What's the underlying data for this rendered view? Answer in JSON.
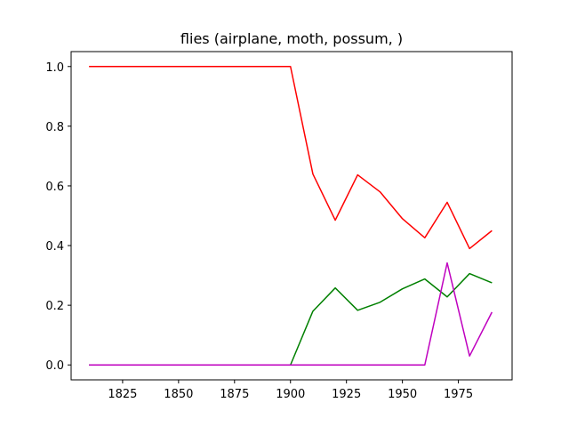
{
  "chart_data": {
    "type": "line",
    "title": "flies (airplane, moth, possum, )",
    "xlabel": "",
    "ylabel": "",
    "xlim": [
      1802,
      1999
    ],
    "ylim": [
      -0.05,
      1.05
    ],
    "xticks": [
      1825,
      1850,
      1875,
      1900,
      1925,
      1950,
      1975
    ],
    "yticks": [
      0.0,
      0.2,
      0.4,
      0.6,
      0.8,
      1.0
    ],
    "ytick_labels": [
      "0.0",
      "0.2",
      "0.4",
      "0.6",
      "0.8",
      "1.0"
    ],
    "grid": false,
    "legend": false,
    "x": [
      1810,
      1820,
      1830,
      1840,
      1850,
      1860,
      1870,
      1880,
      1890,
      1900,
      1910,
      1920,
      1930,
      1940,
      1950,
      1960,
      1970,
      1980,
      1990
    ],
    "series": [
      {
        "color": "#ff0000",
        "values": [
          1.0,
          1.0,
          1.0,
          1.0,
          1.0,
          1.0,
          1.0,
          1.0,
          1.0,
          1.0,
          0.64,
          0.485,
          0.637,
          0.58,
          0.49,
          0.426,
          0.545,
          0.39,
          0.45
        ]
      },
      {
        "color": "#008000",
        "values": [
          0.0,
          0.0,
          0.0,
          0.0,
          0.0,
          0.0,
          0.0,
          0.0,
          0.0,
          0.0,
          0.18,
          0.258,
          0.183,
          0.21,
          0.255,
          0.288,
          0.228,
          0.306,
          0.275
        ]
      },
      {
        "color": "#bf00bf",
        "values": [
          0.0,
          0.0,
          0.0,
          0.0,
          0.0,
          0.0,
          0.0,
          0.0,
          0.0,
          0.0,
          0.0,
          0.0,
          0.0,
          0.0,
          0.0,
          0.0,
          0.342,
          0.03,
          0.177
        ]
      }
    ]
  }
}
